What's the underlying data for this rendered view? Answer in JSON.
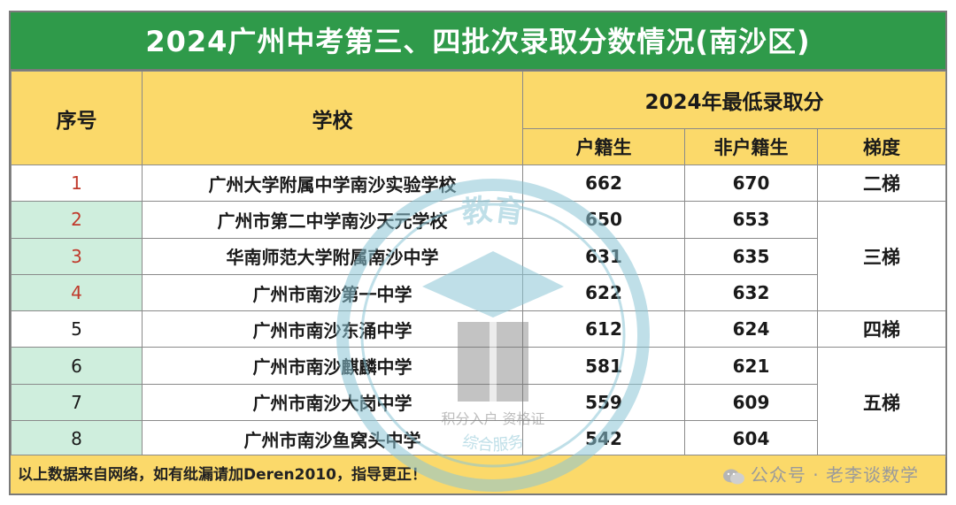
{
  "title": "2024广州中考第三、四批次录取分数情况(南沙区)",
  "headers": {
    "index": "序号",
    "school": "学校",
    "score_group": "2024年最低录取分",
    "hukou": "户籍生",
    "non_hukou": "非户籍生",
    "tier": "梯度"
  },
  "rows": [
    {
      "index": "1",
      "school": "广州大学附属中学南沙实验学校",
      "hukou": "662",
      "non_hukou": "670"
    },
    {
      "index": "2",
      "school": "广州市第二中学南沙天元学校",
      "hukou": "650",
      "non_hukou": "653"
    },
    {
      "index": "3",
      "school": "华南师范大学附属南沙中学",
      "hukou": "631",
      "non_hukou": "635"
    },
    {
      "index": "4",
      "school": "广州市南沙第一中学",
      "hukou": "622",
      "non_hukou": "632"
    },
    {
      "index": "5",
      "school": "广州市南沙东涌中学",
      "hukou": "612",
      "non_hukou": "624"
    },
    {
      "index": "6",
      "school": "广州市南沙麒麟中学",
      "hukou": "581",
      "non_hukou": "621"
    },
    {
      "index": "7",
      "school": "广州市南沙大岗中学",
      "hukou": "559",
      "non_hukou": "609"
    },
    {
      "index": "8",
      "school": "广州市南沙鱼窝头中学",
      "hukou": "542",
      "non_hukou": "604"
    }
  ],
  "tiers": [
    "二梯",
    "三梯",
    "四梯",
    "五梯"
  ],
  "footer": "以上数据来自网络，如有纰漏请加Deren2010，指导更正！",
  "watermark": "公众号 · 老李谈数学",
  "stamp_text": {
    "top": "教育",
    "bottom": "积分入户 资格证",
    "ring": "综合服务"
  },
  "colors": {
    "title_bg": "#2f9a4a",
    "header_bg": "#fbd96a",
    "row_green": "#cfeedd",
    "index_red": "#c0392b"
  }
}
